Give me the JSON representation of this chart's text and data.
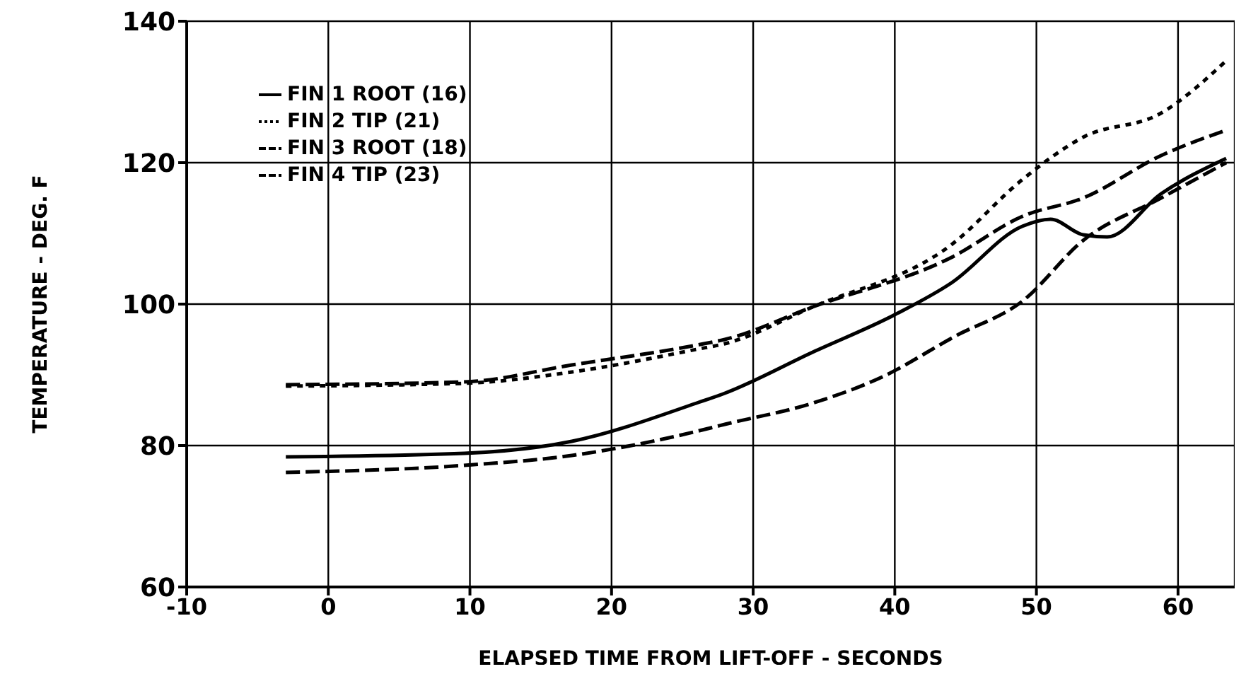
{
  "chart_data": {
    "type": "line",
    "xlabel": "ELAPSED TIME FROM LIFT-OFF - SECONDS",
    "ylabel": "TEMPERATURE - DEG. F",
    "xlim": [
      -10,
      64
    ],
    "xticks": [
      -10,
      0,
      10,
      20,
      30,
      40,
      50,
      60
    ],
    "ylim": [
      60,
      140
    ],
    "yticks": [
      60,
      80,
      100,
      120,
      140
    ],
    "grid": true,
    "legend": "top left",
    "marker": "none",
    "series": [
      {
        "name": "FIN 1  ROOT (16)",
        "color": "#000000",
        "line_style": "solid",
        "x": [
          -3,
          9.6,
          17.2,
          26,
          28,
          34.2,
          40,
          44,
          49,
          51,
          53.3,
          55,
          58.8,
          63.4
        ],
        "values": [
          78.4,
          78.9,
          80.6,
          86,
          87.4,
          93.2,
          98.5,
          103,
          111,
          112,
          109.8,
          109.5,
          115.6,
          120.6
        ]
      },
      {
        "name": "FIN 2  TIP (21)",
        "color": "#000000",
        "line_style": "dotted",
        "x": [
          -3,
          9.6,
          17.2,
          26,
          28,
          34.2,
          44,
          49,
          53.3,
          58.8,
          63.4
        ],
        "values": [
          88.4,
          88.8,
          90.4,
          93.6,
          94.4,
          99.6,
          108.4,
          117.6,
          123.6,
          127,
          134.4
        ]
      },
      {
        "name": "FIN 3  ROOT (18)",
        "color": "#000000",
        "line_style": "dashed",
        "x": [
          -3,
          9.6,
          17.2,
          26,
          28,
          34.2,
          44,
          49,
          53.3,
          58.8,
          63.4
        ],
        "values": [
          88.6,
          89,
          91.4,
          94.2,
          95,
          99.6,
          106.6,
          112.4,
          115,
          121,
          124.6
        ]
      },
      {
        "name": "FIN 4  TIP (23)",
        "color": "#000000",
        "line_style": "dashed",
        "x": [
          -3,
          9.6,
          17.2,
          26,
          28,
          34.2,
          39,
          44.3,
          49,
          53.3,
          58.8,
          63.4
        ],
        "values": [
          76.2,
          77.2,
          78.6,
          82,
          83,
          86,
          89.6,
          95.5,
          100.4,
          109,
          115,
          120
        ]
      }
    ]
  }
}
